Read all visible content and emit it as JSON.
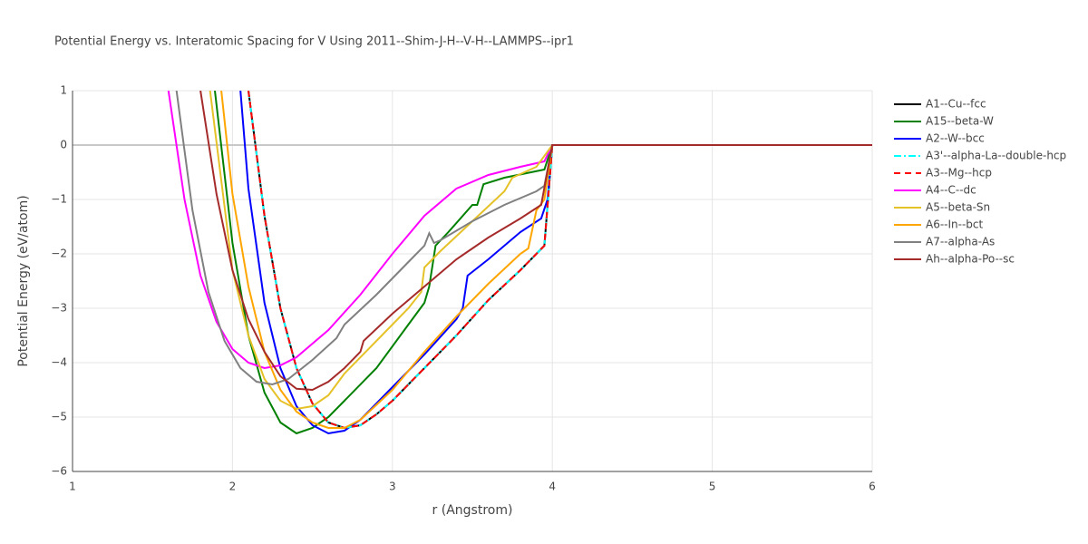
{
  "chart_data": {
    "type": "line",
    "title": "Potential Energy vs. Interatomic Spacing for V Using 2011--Shim-J-H--V-H--LAMMPS--ipr1",
    "xlabel": "r (Angstrom)",
    "ylabel": "Potential Energy (eV/atom)",
    "xlim": [
      1,
      6
    ],
    "ylim": [
      -6,
      1
    ],
    "xticks": [
      1,
      2,
      3,
      4,
      5,
      6
    ],
    "yticks": [
      1,
      0,
      {
        "value": -1,
        "label": "−1"
      },
      {
        "value": -2,
        "label": "−2"
      },
      {
        "value": -3,
        "label": "−3"
      },
      {
        "value": -4,
        "label": "−4"
      },
      {
        "value": -5,
        "label": "−5"
      },
      {
        "value": -6,
        "label": "−6"
      }
    ],
    "grid": true,
    "series": [
      {
        "name": "A1--Cu--fcc",
        "color": "#000000",
        "dash": "solid",
        "x": [
          2.1,
          2.2,
          2.3,
          2.4,
          2.5,
          2.6,
          2.7,
          2.8,
          2.9,
          3.0,
          3.2,
          3.4,
          3.6,
          3.8,
          3.95,
          4.0,
          6
        ],
        "values": [
          1,
          -1.3,
          -3.0,
          -4.1,
          -4.75,
          -5.1,
          -5.2,
          -5.15,
          -4.95,
          -4.7,
          -4.1,
          -3.5,
          -2.85,
          -2.3,
          -1.85,
          0,
          0
        ]
      },
      {
        "name": "A15--beta-W",
        "color": "#008000",
        "dash": "solid",
        "x": [
          1.89,
          2.0,
          2.1,
          2.2,
          2.3,
          2.4,
          2.5,
          2.6,
          2.7,
          2.9,
          3.1,
          3.2,
          3.23,
          3.27,
          3.35,
          3.5,
          3.53,
          3.57,
          3.7,
          3.95,
          4.0,
          6
        ],
        "values": [
          1,
          -1.8,
          -3.5,
          -4.55,
          -5.1,
          -5.3,
          -5.2,
          -5.0,
          -4.7,
          -4.1,
          -3.3,
          -2.9,
          -2.6,
          -1.85,
          -1.6,
          -1.1,
          -1.1,
          -0.72,
          -0.6,
          -0.45,
          0,
          0
        ]
      },
      {
        "name": "A2--W--bcc",
        "color": "#0000ff",
        "dash": "solid",
        "x": [
          2.05,
          2.1,
          2.2,
          2.3,
          2.4,
          2.5,
          2.6,
          2.7,
          2.8,
          3.0,
          3.2,
          3.4,
          3.44,
          3.47,
          3.6,
          3.8,
          3.93,
          3.97,
          4.0,
          6
        ],
        "values": [
          1,
          -0.8,
          -2.9,
          -4.1,
          -4.8,
          -5.15,
          -5.3,
          -5.25,
          -5.05,
          -4.45,
          -3.85,
          -3.2,
          -3.0,
          -2.4,
          -2.1,
          -1.6,
          -1.35,
          -1.0,
          0,
          0
        ]
      },
      {
        "name": "A3'--alpha-La--double-hcp",
        "color": "#00ffff",
        "dash": "dashdot",
        "x": [
          2.1,
          2.2,
          2.3,
          2.4,
          2.5,
          2.6,
          2.7,
          2.8,
          2.9,
          3.0,
          3.2,
          3.4,
          3.6,
          3.8,
          3.95,
          4.0,
          6
        ],
        "values": [
          1,
          -1.3,
          -3.0,
          -4.1,
          -4.75,
          -5.1,
          -5.2,
          -5.15,
          -4.95,
          -4.7,
          -4.1,
          -3.5,
          -2.85,
          -2.3,
          -1.85,
          0,
          0
        ]
      },
      {
        "name": "A3--Mg--hcp",
        "color": "#ff0000",
        "dash": "dash",
        "x": [
          2.1,
          2.2,
          2.3,
          2.4,
          2.5,
          2.6,
          2.7,
          2.8,
          2.9,
          3.0,
          3.2,
          3.4,
          3.6,
          3.8,
          3.95,
          4.0,
          6
        ],
        "values": [
          1,
          -1.3,
          -3.0,
          -4.1,
          -4.75,
          -5.1,
          -5.2,
          -5.15,
          -4.95,
          -4.7,
          -4.1,
          -3.5,
          -2.85,
          -2.3,
          -1.85,
          0,
          0
        ]
      },
      {
        "name": "A4--C--dc",
        "color": "#ff00ff",
        "dash": "solid",
        "x": [
          1.6,
          1.7,
          1.8,
          1.9,
          2.0,
          2.1,
          2.2,
          2.3,
          2.4,
          2.6,
          2.8,
          3.0,
          3.2,
          3.4,
          3.6,
          3.8,
          3.95,
          4.0,
          6
        ],
        "values": [
          1,
          -1.0,
          -2.4,
          -3.25,
          -3.75,
          -4.0,
          -4.1,
          -4.05,
          -3.9,
          -3.4,
          -2.75,
          -2.0,
          -1.3,
          -0.8,
          -0.55,
          -0.4,
          -0.3,
          0,
          0
        ]
      },
      {
        "name": "A5--beta-Sn",
        "color": "#e6c229",
        "dash": "solid",
        "x": [
          1.86,
          2.0,
          2.1,
          2.2,
          2.3,
          2.4,
          2.5,
          2.6,
          2.7,
          2.9,
          3.1,
          3.18,
          3.2,
          3.3,
          3.5,
          3.7,
          3.75,
          3.9,
          4.0,
          6
        ],
        "values": [
          1,
          -2.3,
          -3.5,
          -4.3,
          -4.7,
          -4.85,
          -4.8,
          -4.6,
          -4.2,
          -3.6,
          -3.0,
          -2.7,
          -2.25,
          -1.95,
          -1.4,
          -0.85,
          -0.6,
          -0.4,
          0,
          0
        ]
      },
      {
        "name": "A6--In--bct",
        "color": "#ffa500",
        "dash": "solid",
        "x": [
          1.93,
          2.0,
          2.1,
          2.2,
          2.3,
          2.4,
          2.5,
          2.6,
          2.7,
          2.8,
          3.0,
          3.2,
          3.4,
          3.6,
          3.8,
          3.85,
          3.9,
          3.95,
          4.0,
          6
        ],
        "values": [
          1,
          -0.9,
          -2.6,
          -3.8,
          -4.5,
          -4.9,
          -5.1,
          -5.2,
          -5.2,
          -5.05,
          -4.5,
          -3.8,
          -3.15,
          -2.55,
          -2.0,
          -1.9,
          -1.2,
          -1.0,
          0,
          0
        ]
      },
      {
        "name": "A7--alpha-As",
        "color": "#808080",
        "dash": "solid",
        "x": [
          1.65,
          1.75,
          1.85,
          1.95,
          2.05,
          2.15,
          2.25,
          2.35,
          2.5,
          2.65,
          2.7,
          2.9,
          3.1,
          3.2,
          3.23,
          3.26,
          3.3,
          3.5,
          3.7,
          3.9,
          3.95,
          4.0,
          6
        ],
        "values": [
          1,
          -1.2,
          -2.7,
          -3.6,
          -4.1,
          -4.35,
          -4.4,
          -4.3,
          -3.95,
          -3.55,
          -3.3,
          -2.75,
          -2.15,
          -1.85,
          -1.62,
          -1.8,
          -1.75,
          -1.4,
          -1.1,
          -0.85,
          -0.75,
          0,
          0
        ]
      },
      {
        "name": "Ah--alpha-Po--sc",
        "color": "#a52a2a",
        "dash": "solid",
        "x": [
          1.8,
          1.9,
          2.0,
          2.1,
          2.2,
          2.3,
          2.4,
          2.5,
          2.6,
          2.7,
          2.8,
          2.82,
          3.0,
          3.2,
          3.4,
          3.6,
          3.8,
          3.93,
          4.0,
          6
        ],
        "values": [
          1,
          -0.9,
          -2.3,
          -3.2,
          -3.8,
          -4.25,
          -4.48,
          -4.5,
          -4.35,
          -4.1,
          -3.8,
          -3.6,
          -3.1,
          -2.6,
          -2.1,
          -1.7,
          -1.35,
          -1.1,
          0,
          0
        ]
      }
    ]
  }
}
